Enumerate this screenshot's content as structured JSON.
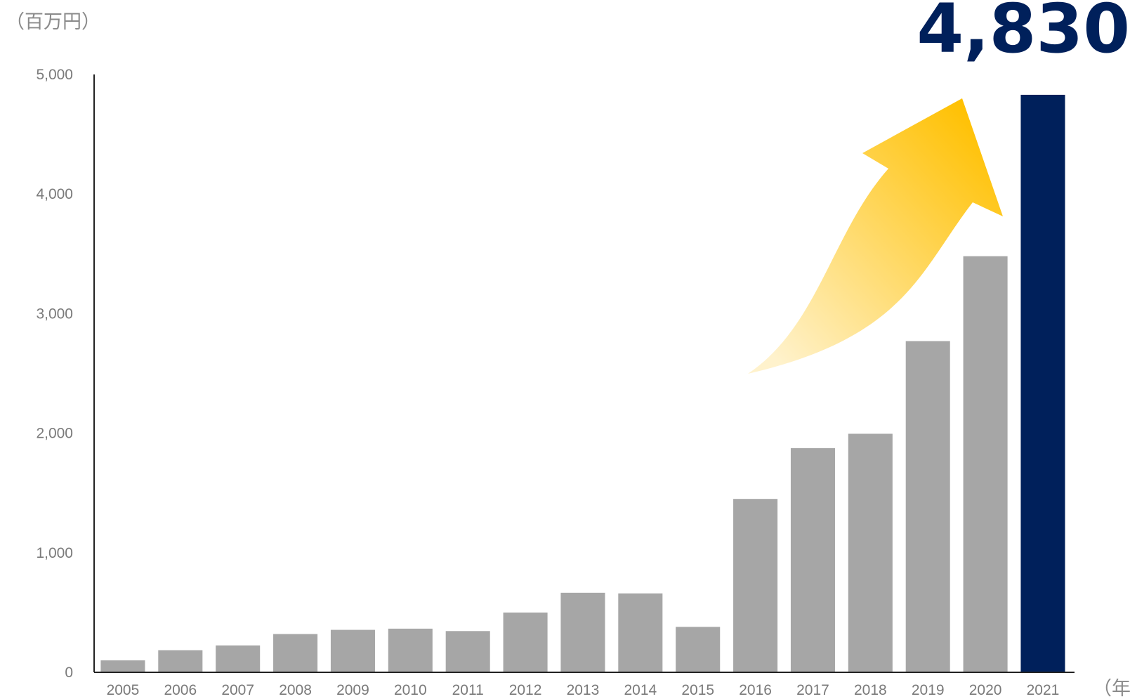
{
  "chart_data": {
    "type": "bar",
    "title": "",
    "xlabel": "",
    "ylabel": "",
    "y_unit_label": "（百万円）",
    "x_unit_label": "（年）",
    "categories": [
      "2005",
      "2006",
      "2007",
      "2008",
      "2009",
      "2010",
      "2011",
      "2012",
      "2013",
      "2014",
      "2015",
      "2016",
      "2017",
      "2018",
      "2019",
      "2020",
      "2021"
    ],
    "values": [
      100,
      185,
      225,
      320,
      355,
      365,
      345,
      500,
      665,
      660,
      380,
      1450,
      1875,
      1995,
      2770,
      3480,
      4830
    ],
    "ylim": [
      0,
      5000
    ],
    "yticks": [
      0,
      1000,
      2000,
      3000,
      4000,
      5000
    ],
    "ytick_labels": [
      "0",
      "1,000",
      "2,000",
      "3,000",
      "4,000",
      "5,000"
    ],
    "grid": false,
    "bar_color": "#a6a6a6",
    "highlight_category": "2021",
    "highlight_color": "#00205b",
    "highlight_label": "4,830",
    "arrow_color_start": "#fff2cc",
    "arrow_color_end": "#ffc000"
  }
}
